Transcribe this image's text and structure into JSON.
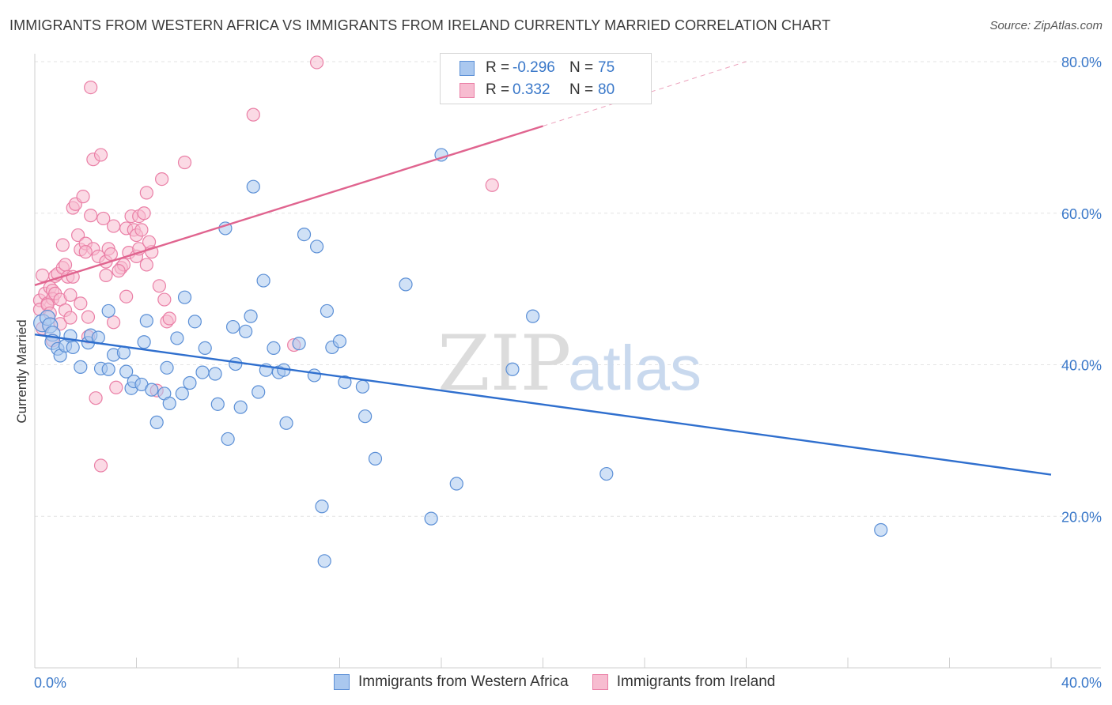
{
  "title": "IMMIGRANTS FROM WESTERN AFRICA VS IMMIGRANTS FROM IRELAND CURRENTLY MARRIED CORRELATION CHART",
  "source": "Source: ZipAtlas.com",
  "watermark": {
    "zip": "ZIP",
    "atlas": "atlas"
  },
  "legend": {
    "r_label": "R =",
    "n_label": "N =",
    "rows": [
      {
        "series": "Immigrants from Western Africa",
        "r": "-0.296",
        "n": "75",
        "color": "#5b9bd5"
      },
      {
        "series": "Immigrants from Ireland",
        "r": "0.332",
        "n": "80",
        "color": "#f08cb0"
      }
    ]
  },
  "colors": {
    "blue_fill": "#aac8ef",
    "blue_stroke": "#5b8fd6",
    "blue_line": "#2f6fce",
    "pink_fill": "#f7bcd0",
    "pink_stroke": "#ea7fa6",
    "pink_line": "#e0648f",
    "tick_text": "#3a78c9",
    "grid": "#e3e3e3"
  },
  "chart_data": {
    "type": "scatter",
    "title": "IMMIGRANTS FROM WESTERN AFRICA VS IMMIGRANTS FROM IRELAND CURRENTLY MARRIED CORRELATION CHART",
    "xlabel": "",
    "ylabel": "Currently Married",
    "xlim": [
      0,
      40
    ],
    "ylim": [
      0,
      80
    ],
    "x_tick_labels": [
      "0.0%",
      "40.0%"
    ],
    "y_ticks": [
      20,
      40,
      60,
      80
    ],
    "y_tick_labels": [
      "20.0%",
      "40.0%",
      "60.0%",
      "80.0%"
    ],
    "grid": true,
    "legend_position": "top-center",
    "series": [
      {
        "name": "Immigrants from Western Africa",
        "r": -0.296,
        "n": 75,
        "trend": {
          "x": [
            0,
            40
          ],
          "y": [
            44.0,
            25.5
          ]
        },
        "points": [
          [
            0.3,
            45.5
          ],
          [
            0.5,
            46.2
          ],
          [
            0.6,
            45.2
          ],
          [
            0.7,
            44.1
          ],
          [
            0.7,
            43.0
          ],
          [
            0.9,
            42.1
          ],
          [
            1.0,
            41.2
          ],
          [
            1.2,
            42.5
          ],
          [
            1.4,
            43.8
          ],
          [
            1.5,
            42.3
          ],
          [
            1.8,
            39.7
          ],
          [
            2.1,
            42.9
          ],
          [
            2.2,
            43.9
          ],
          [
            2.5,
            43.6
          ],
          [
            2.6,
            39.5
          ],
          [
            2.9,
            39.4
          ],
          [
            2.9,
            47.1
          ],
          [
            3.1,
            41.3
          ],
          [
            3.5,
            41.6
          ],
          [
            3.6,
            39.1
          ],
          [
            3.8,
            36.9
          ],
          [
            3.9,
            37.8
          ],
          [
            4.2,
            37.4
          ],
          [
            4.3,
            43.0
          ],
          [
            4.4,
            45.8
          ],
          [
            4.6,
            36.7
          ],
          [
            4.8,
            32.4
          ],
          [
            5.1,
            36.2
          ],
          [
            5.2,
            39.6
          ],
          [
            5.3,
            34.9
          ],
          [
            5.6,
            43.5
          ],
          [
            5.8,
            36.2
          ],
          [
            5.9,
            48.9
          ],
          [
            6.1,
            37.6
          ],
          [
            6.3,
            45.7
          ],
          [
            6.6,
            39.0
          ],
          [
            6.7,
            42.2
          ],
          [
            7.1,
            38.8
          ],
          [
            7.2,
            34.8
          ],
          [
            7.5,
            58.0
          ],
          [
            7.6,
            30.2
          ],
          [
            7.8,
            45.0
          ],
          [
            7.9,
            40.1
          ],
          [
            8.1,
            34.4
          ],
          [
            8.3,
            44.4
          ],
          [
            8.5,
            46.4
          ],
          [
            8.6,
            63.5
          ],
          [
            8.8,
            36.4
          ],
          [
            9.0,
            51.1
          ],
          [
            9.1,
            39.3
          ],
          [
            9.4,
            42.2
          ],
          [
            9.6,
            39.0
          ],
          [
            9.8,
            39.3
          ],
          [
            9.9,
            32.3
          ],
          [
            10.4,
            42.8
          ],
          [
            10.6,
            57.2
          ],
          [
            11.0,
            38.6
          ],
          [
            11.1,
            55.6
          ],
          [
            11.3,
            21.3
          ],
          [
            11.4,
            14.1
          ],
          [
            11.5,
            47.1
          ],
          [
            11.7,
            42.3
          ],
          [
            12.0,
            43.1
          ],
          [
            12.2,
            37.7
          ],
          [
            12.9,
            37.1
          ],
          [
            13.0,
            33.2
          ],
          [
            13.4,
            27.6
          ],
          [
            14.6,
            50.6
          ],
          [
            15.6,
            19.7
          ],
          [
            16.0,
            67.7
          ],
          [
            16.6,
            24.3
          ],
          [
            18.8,
            39.4
          ],
          [
            19.6,
            46.4
          ],
          [
            22.5,
            25.6
          ],
          [
            33.3,
            18.2
          ]
        ]
      },
      {
        "name": "Immigrants from Ireland",
        "r": 0.332,
        "n": 80,
        "trend": {
          "x": [
            0,
            20
          ],
          "y": [
            50.5,
            71.5
          ]
        },
        "trend_dashed_extension": {
          "x": [
            20,
            28
          ],
          "y": [
            71.5,
            80.0
          ]
        },
        "points": [
          [
            0.2,
            48.5
          ],
          [
            0.2,
            47.3
          ],
          [
            0.3,
            51.8
          ],
          [
            0.4,
            49.4
          ],
          [
            0.5,
            48.1
          ],
          [
            0.6,
            50.2
          ],
          [
            0.7,
            49.8
          ],
          [
            0.7,
            48.7
          ],
          [
            0.8,
            51.7
          ],
          [
            0.8,
            49.4
          ],
          [
            0.9,
            52.0
          ],
          [
            1.0,
            48.6
          ],
          [
            1.0,
            45.4
          ],
          [
            1.1,
            52.8
          ],
          [
            1.1,
            55.8
          ],
          [
            1.2,
            53.2
          ],
          [
            1.2,
            47.2
          ],
          [
            1.3,
            51.6
          ],
          [
            1.4,
            46.2
          ],
          [
            1.5,
            51.6
          ],
          [
            1.5,
            60.7
          ],
          [
            1.6,
            61.2
          ],
          [
            1.7,
            57.1
          ],
          [
            1.8,
            48.1
          ],
          [
            1.8,
            55.2
          ],
          [
            1.9,
            62.2
          ],
          [
            2.0,
            56.0
          ],
          [
            2.1,
            46.3
          ],
          [
            2.1,
            43.7
          ],
          [
            2.2,
            76.6
          ],
          [
            2.2,
            59.7
          ],
          [
            2.3,
            55.3
          ],
          [
            2.3,
            67.1
          ],
          [
            2.4,
            35.6
          ],
          [
            2.5,
            54.3
          ],
          [
            2.6,
            26.7
          ],
          [
            2.6,
            67.7
          ],
          [
            2.7,
            59.3
          ],
          [
            2.8,
            53.6
          ],
          [
            2.8,
            51.8
          ],
          [
            2.9,
            55.3
          ],
          [
            3.0,
            54.6
          ],
          [
            3.1,
            45.6
          ],
          [
            3.1,
            58.3
          ],
          [
            3.2,
            37.0
          ],
          [
            3.4,
            52.8
          ],
          [
            3.5,
            53.2
          ],
          [
            3.6,
            49.0
          ],
          [
            3.6,
            58.0
          ],
          [
            3.7,
            54.8
          ],
          [
            3.8,
            59.6
          ],
          [
            3.9,
            57.8
          ],
          [
            4.0,
            54.3
          ],
          [
            4.0,
            57.1
          ],
          [
            4.1,
            55.3
          ],
          [
            4.1,
            59.6
          ],
          [
            4.2,
            57.8
          ],
          [
            4.3,
            60.0
          ],
          [
            4.4,
            62.7
          ],
          [
            4.4,
            53.2
          ],
          [
            4.6,
            54.9
          ],
          [
            4.8,
            36.6
          ],
          [
            4.9,
            50.4
          ],
          [
            5.0,
            64.5
          ],
          [
            5.1,
            48.6
          ],
          [
            5.2,
            45.7
          ],
          [
            5.3,
            46.1
          ],
          [
            5.9,
            66.7
          ],
          [
            8.6,
            73.0
          ],
          [
            10.2,
            42.6
          ],
          [
            11.1,
            79.9
          ],
          [
            18.0,
            63.7
          ],
          [
            0.3,
            44.8
          ],
          [
            0.5,
            47.9
          ],
          [
            0.6,
            46.8
          ],
          [
            0.7,
            43.2
          ],
          [
            1.4,
            49.2
          ],
          [
            2.0,
            54.9
          ],
          [
            3.3,
            52.4
          ],
          [
            4.5,
            56.2
          ]
        ]
      }
    ]
  }
}
